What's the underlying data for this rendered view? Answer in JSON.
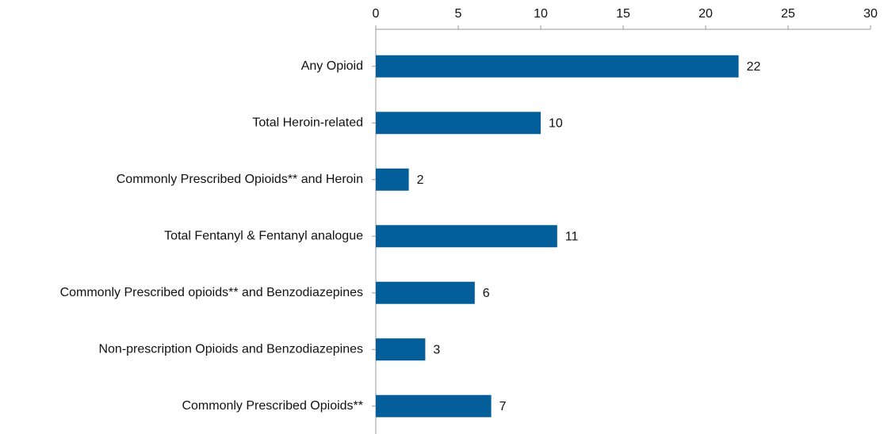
{
  "chart_data": {
    "type": "bar",
    "orientation": "horizontal",
    "categories": [
      "Any Opioid",
      "Total Heroin-related",
      "Commonly Prescribed Opioids** and Heroin",
      "Total Fentanyl & Fentanyl analogue",
      "Commonly Prescribed opioids** and Benzodiazepines",
      "Non-prescription Opioids and Benzodiazepines",
      "Commonly Prescribed Opioids**"
    ],
    "values": [
      22,
      10,
      2,
      11,
      6,
      3,
      7
    ],
    "color": "#035e9a",
    "xlim": [
      0,
      30
    ],
    "xticks": [
      0,
      5,
      10,
      15,
      20,
      25,
      30
    ],
    "grid": false
  }
}
